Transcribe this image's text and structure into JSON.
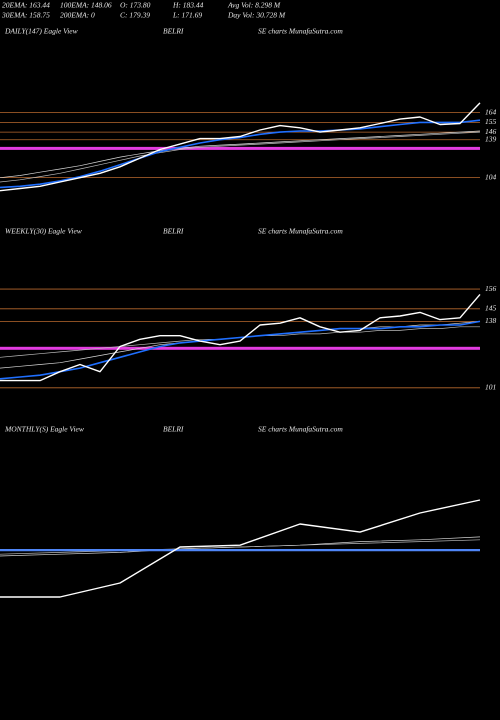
{
  "header": {
    "items": [
      [
        "20EMA: 163.44",
        "100EMA: 148.06",
        "O: 173.80",
        "H: 183.44",
        "Avg Vol: 8.298  M"
      ],
      [
        "30EMA: 158.75",
        "200EMA: 0",
        "C: 179.39",
        "L: 171.69",
        "Day Vol: 30.728  M"
      ]
    ]
  },
  "chart_data": [
    {
      "type": "line",
      "title": "DAILY(147) Eagle  View",
      "symbol": "BELRI",
      "source": "SE charts MunafaSutra.com",
      "ylim": [
        88,
        231
      ],
      "yticks": [
        164,
        155,
        146,
        139,
        104
      ],
      "tick_color": "#b8692e",
      "level_lines": [
        {
          "value": 131,
          "color": "#e33ce0"
        }
      ],
      "series": [
        {
          "color": "#d8d8d8",
          "width": 0.7,
          "values": [
            104,
            106,
            109,
            112,
            115,
            119,
            123,
            126,
            129,
            131,
            133,
            134,
            135,
            136,
            137,
            138,
            139,
            140,
            141,
            142,
            143,
            144,
            145,
            146,
            147
          ]
        },
        {
          "color": "#bbbbbb",
          "width": 0.7,
          "values": [
            100,
            102,
            105,
            108,
            112,
            116,
            120,
            124,
            127,
            130,
            132,
            133,
            134,
            135,
            136,
            137,
            138,
            139,
            140,
            141,
            142,
            143,
            144,
            145,
            146
          ]
        },
        {
          "color": "#1f6fff",
          "width": 1.6,
          "values": [
            95,
            96,
            98,
            101,
            105,
            110,
            116,
            122,
            128,
            132,
            136,
            139,
            141,
            144,
            146,
            147,
            147,
            148,
            149,
            151,
            153,
            155,
            155,
            155,
            157
          ]
        },
        {
          "color": "#ffffff",
          "width": 1.4,
          "values": [
            92,
            94,
            96,
            100,
            104,
            108,
            114,
            122,
            130,
            135,
            140,
            140,
            142,
            148,
            152,
            150,
            146,
            148,
            150,
            154,
            158,
            160,
            153,
            154,
            173
          ]
        }
      ]
    },
    {
      "type": "line",
      "title": "WEEKLY(30) Eagle  View",
      "symbol": "BELRI",
      "source": "SE charts MunafaSutra.com",
      "ylim": [
        97,
        190
      ],
      "yticks": [
        156,
        145,
        138,
        101
      ],
      "tick_color": "#b8692e",
      "level_lines": [
        {
          "value": 123,
          "color": "#e33ce0"
        }
      ],
      "series": [
        {
          "color": "#d8d8d8",
          "width": 0.7,
          "values": [
            112,
            113,
            114,
            115,
            117,
            119,
            121,
            123,
            125,
            126,
            127,
            128,
            129,
            130,
            131,
            132,
            133,
            134,
            134,
            135,
            135,
            136,
            136,
            137,
            138
          ]
        },
        {
          "color": "#bbbbbb",
          "width": 0.7,
          "values": [
            118,
            119,
            120,
            121,
            122,
            123,
            124,
            125,
            126,
            127,
            128,
            128,
            129,
            130,
            130,
            131,
            131,
            132,
            132,
            133,
            133,
            134,
            134,
            135,
            135
          ]
        },
        {
          "color": "#1f6fff",
          "width": 1.6,
          "values": [
            106,
            107,
            108,
            110,
            112,
            115,
            118,
            121,
            124,
            126,
            127,
            128,
            129,
            130,
            131,
            132,
            133,
            134,
            134,
            134,
            135,
            135,
            136,
            136,
            138
          ]
        },
        {
          "color": "#ffffff",
          "width": 1.4,
          "values": [
            105,
            105,
            105,
            110,
            114,
            110,
            124,
            128,
            130,
            130,
            127,
            125,
            127,
            136,
            137,
            140,
            135,
            132,
            133,
            140,
            141,
            143,
            139,
            140,
            153
          ]
        }
      ]
    },
    {
      "type": "line",
      "title": "MONTHLY(S) Eagle  View",
      "symbol": "BELRI",
      "source": "SE charts MunafaSutra.com",
      "ylim": [
        0,
        100
      ],
      "yticks": [],
      "tick_color": "#b8692e",
      "level_lines": [],
      "series": [
        {
          "color": "#d8d8d8",
          "width": 0.7,
          "values": [
            30,
            31,
            32,
            34,
            35,
            36,
            38,
            39,
            40.6
          ]
        },
        {
          "color": "#bbbbbb",
          "width": 0.7,
          "values": [
            31,
            32,
            33,
            34,
            35,
            36,
            37,
            38,
            39
          ]
        },
        {
          "color": "#4f86f7",
          "width": 2.2,
          "values": [
            33.3,
            33.3,
            33.3,
            33.3,
            33.3,
            33.3,
            33.3,
            33.3,
            33.3
          ]
        },
        {
          "color": "#ffffff",
          "width": 1.4,
          "values": [
            7.2,
            7.2,
            15,
            35,
            36,
            47.8,
            43.3,
            53.9,
            61.1
          ]
        }
      ]
    }
  ]
}
